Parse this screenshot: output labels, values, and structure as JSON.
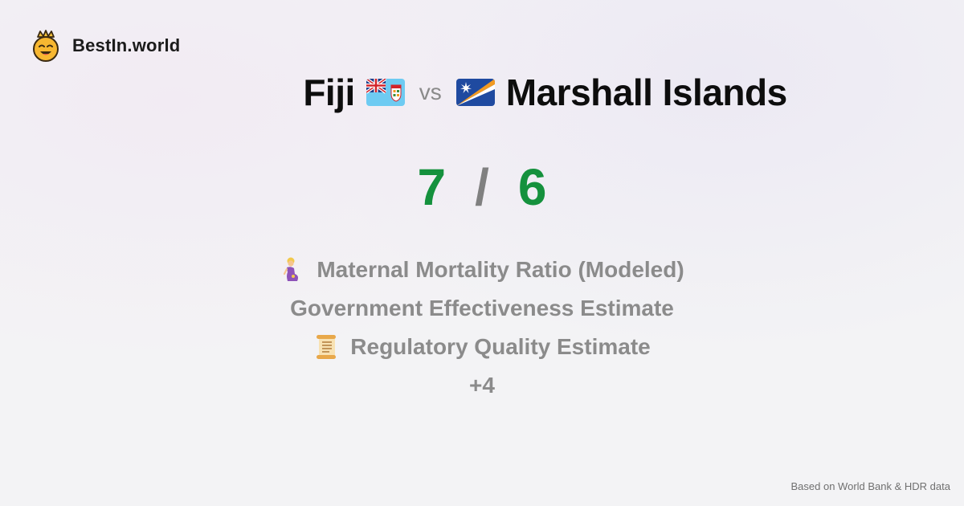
{
  "brand": {
    "name": "BestIn.world",
    "logo_icon": "crowned-smiley-icon"
  },
  "comparison": {
    "left": {
      "name": "Fiji",
      "flag_icon": "fiji-flag-icon",
      "score": "7"
    },
    "vs_label": "vs",
    "right": {
      "name": "Marshall Islands",
      "flag_icon": "marshall-islands-flag-icon",
      "score": "6"
    },
    "separator": "/"
  },
  "metrics": [
    {
      "icon": "pregnant-woman-icon",
      "label": "Maternal Mortality Ratio (Modeled)"
    },
    {
      "icon": "",
      "label": "Government Effectiveness Estimate"
    },
    {
      "icon": "scroll-icon",
      "label": "Regulatory Quality Estimate"
    }
  ],
  "more_label": "+4",
  "footer": {
    "source": "Based on World Bank & HDR data"
  },
  "colors": {
    "score_green": "#15913d",
    "muted_text": "#8b8b8b",
    "fiji_blue": "#6ecbf2",
    "marshall_blue": "#1f4aa0",
    "marshall_orange": "#f29a21"
  }
}
